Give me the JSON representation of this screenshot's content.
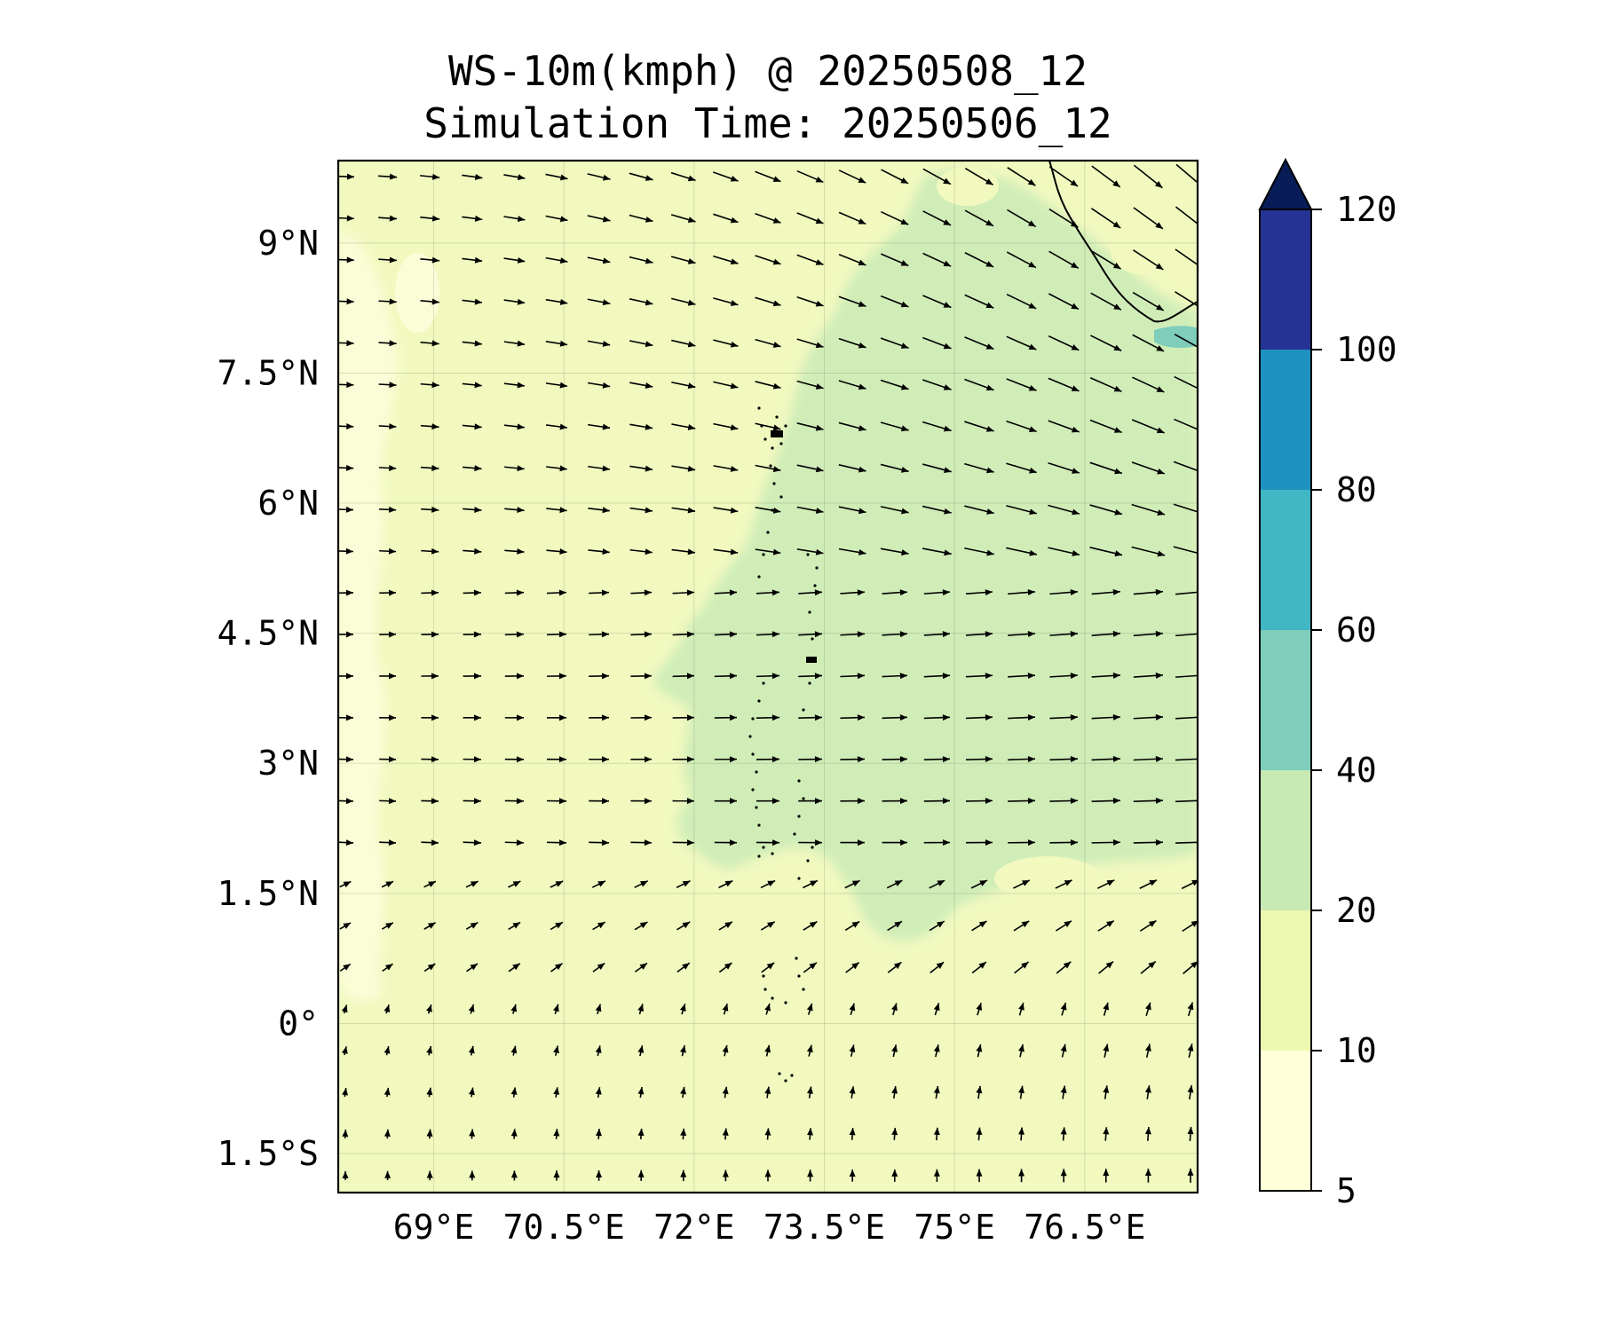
{
  "title": {
    "line1": "WS-10m(kmph) @ 20250508_12",
    "line2": "Simulation Time: 20250506_12"
  },
  "map": {
    "lon_range": [
      67.9,
      77.8
    ],
    "lat_range": [
      -1.95,
      9.95
    ],
    "lat_ticks": [
      {
        "value": 9,
        "label": "9°N"
      },
      {
        "value": 7.5,
        "label": "7.5°N"
      },
      {
        "value": 6,
        "label": "6°N"
      },
      {
        "value": 4.5,
        "label": "4.5°N"
      },
      {
        "value": 3,
        "label": "3°N"
      },
      {
        "value": 1.5,
        "label": "1.5°N"
      },
      {
        "value": 0,
        "label": "0°"
      },
      {
        "value": -1.5,
        "label": "1.5°S"
      }
    ],
    "lon_ticks": [
      {
        "value": 69,
        "label": "69°E"
      },
      {
        "value": 70.5,
        "label": "70.5°E"
      },
      {
        "value": 72,
        "label": "72°E"
      },
      {
        "value": 73.5,
        "label": "73.5°E"
      },
      {
        "value": 75,
        "label": "75°E"
      },
      {
        "value": 76.5,
        "label": "76.5°E"
      }
    ],
    "gridlines": true,
    "wind_vectors": true
  },
  "colorbar": {
    "levels": [
      "5",
      "10",
      "20",
      "40",
      "60",
      "80",
      "100",
      "120"
    ],
    "colors": [
      "#ffffd9",
      "#edf8b1",
      "#c7e9b4",
      "#7fcdbb",
      "#41b6c4",
      "#1d91c0",
      "#253494",
      "#081d58"
    ],
    "extend": "max"
  }
}
